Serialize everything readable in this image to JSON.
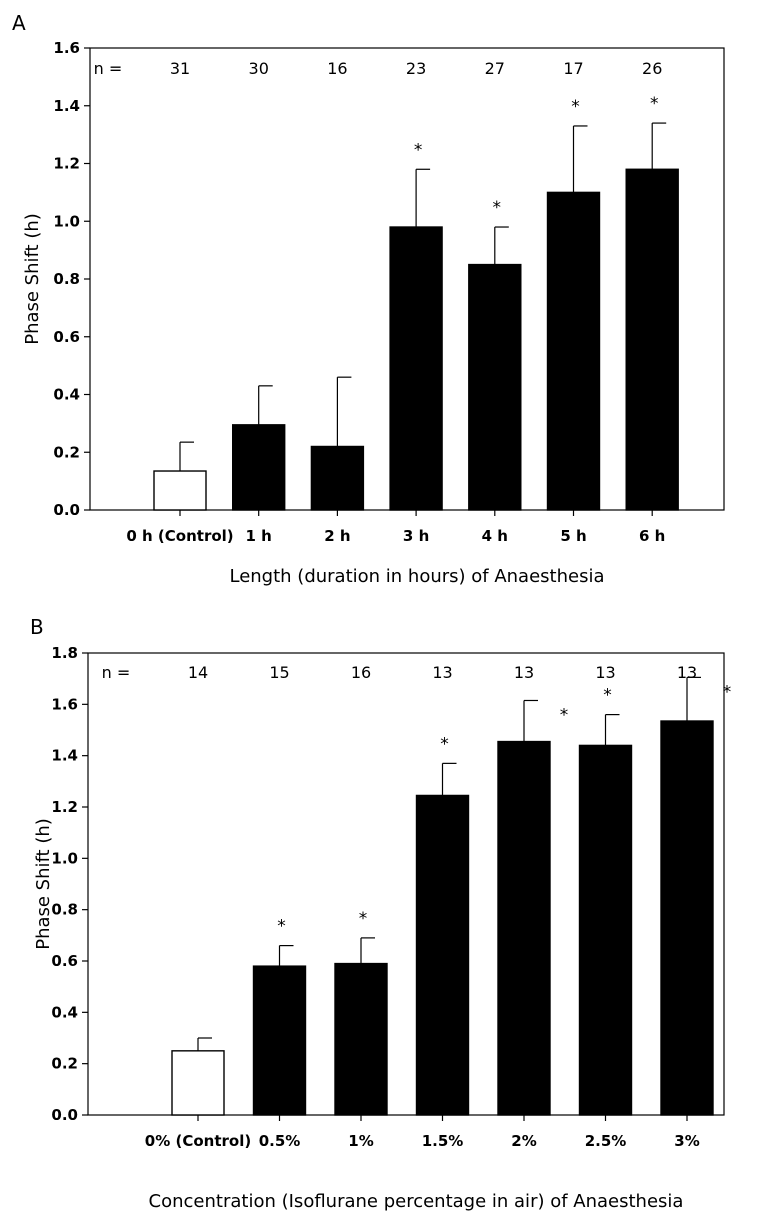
{
  "chart_data": [
    {
      "type": "bar",
      "panel_label": "A",
      "xlabel": "Length (duration in hours) of Anaesthesia",
      "ylabel": "Phase Shift (h)",
      "ylim": [
        0,
        1.6
      ],
      "yticks": [
        "0.0",
        "0.2",
        "0.4",
        "0.6",
        "0.8",
        "1.0",
        "1.2",
        "1.4",
        "1.6"
      ],
      "n_prefix": "n =",
      "categories": [
        "0 h (Control)",
        "1 h",
        "2 h",
        "3 h",
        "4 h",
        "5 h",
        "6 h"
      ],
      "values": [
        0.135,
        0.295,
        0.22,
        0.98,
        0.85,
        1.1,
        1.18
      ],
      "errors": [
        0.1,
        0.135,
        0.24,
        0.2,
        0.13,
        0.23,
        0.16
      ],
      "n": [
        "31",
        "30",
        "16",
        "23",
        "27",
        "17",
        "26"
      ],
      "significance": [
        "",
        "",
        "",
        "*",
        "*",
        "*",
        "*"
      ],
      "fill": [
        "#ffffff",
        "#000000",
        "#000000",
        "#000000",
        "#000000",
        "#000000",
        "#000000"
      ]
    },
    {
      "type": "bar",
      "panel_label": "B",
      "xlabel": "Concentration (Isoflurane percentage in air) of Anaesthesia",
      "ylabel": "Phase Shift (h)",
      "ylim": [
        0,
        1.8
      ],
      "yticks": [
        "0.0",
        "0.2",
        "0.4",
        "0.6",
        "0.8",
        "1.0",
        "1.2",
        "1.4",
        "1.6",
        "1.8"
      ],
      "n_prefix": "n =",
      "categories": [
        "0% (Control)",
        "0.5%",
        "1%",
        "1.5%",
        "2%",
        "2.5%",
        "3%"
      ],
      "values": [
        0.25,
        0.58,
        0.59,
        1.245,
        1.455,
        1.44,
        1.535
      ],
      "errors": [
        0.05,
        0.08,
        0.1,
        0.125,
        0.16,
        0.12,
        0.17
      ],
      "n": [
        "14",
        "15",
        "16",
        "13",
        "13",
        "13",
        "13"
      ],
      "significance": [
        "",
        "*",
        "*",
        "*",
        "*",
        "*",
        "*"
      ],
      "fill": [
        "#ffffff",
        "#000000",
        "#000000",
        "#000000",
        "#000000",
        "#000000",
        "#000000"
      ]
    }
  ]
}
